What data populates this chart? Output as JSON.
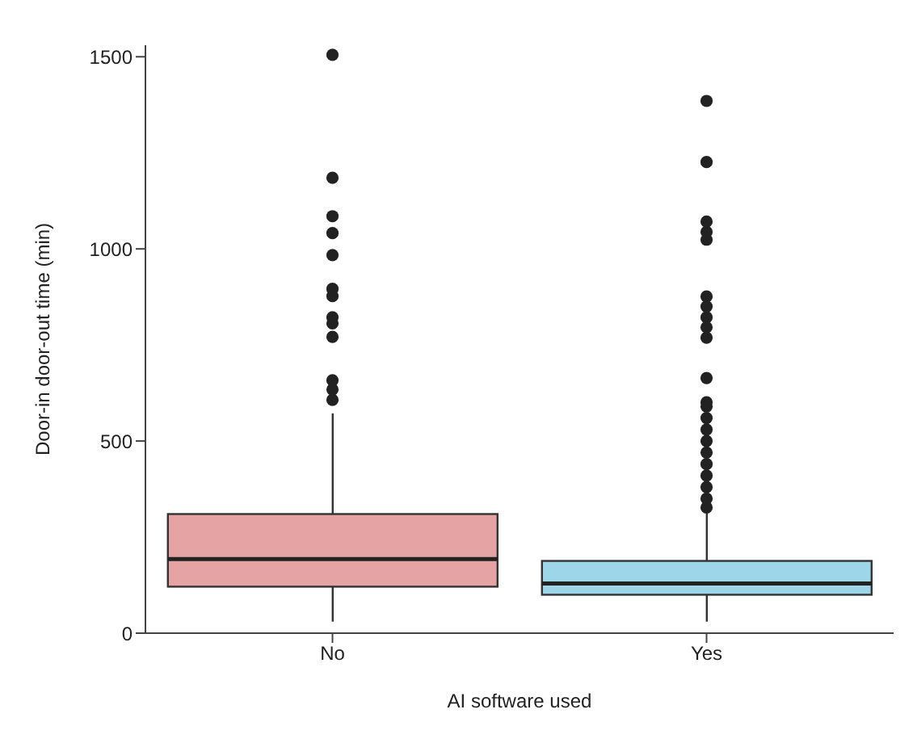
{
  "chart_data": {
    "type": "box",
    "xlabel": "AI software used",
    "ylabel": "Door-in door-out time (min)",
    "categories": [
      "No",
      "Yes"
    ],
    "colors": [
      "#e5a3a3",
      "#9dd6e8"
    ],
    "boxes": [
      {
        "low": 30,
        "q1": 121,
        "median": 193,
        "q3": 310,
        "high": 572,
        "outliers": [
          607,
          634,
          658,
          771,
          806,
          822,
          877,
          896,
          984,
          1041,
          1085,
          1185,
          1505
        ]
      },
      {
        "low": 30,
        "q1": 100,
        "median": 129,
        "q3": 188,
        "high": 315,
        "outliers": [
          327,
          350,
          380,
          410,
          440,
          470,
          500,
          530,
          560,
          590,
          601,
          664,
          769,
          796,
          822,
          850,
          876,
          1024,
          1044,
          1071,
          1226,
          1385
        ]
      }
    ],
    "ylim": [
      0,
      1530
    ],
    "yticks": [
      0,
      500,
      1000,
      1500
    ],
    "grid": false,
    "marker": "circle"
  }
}
